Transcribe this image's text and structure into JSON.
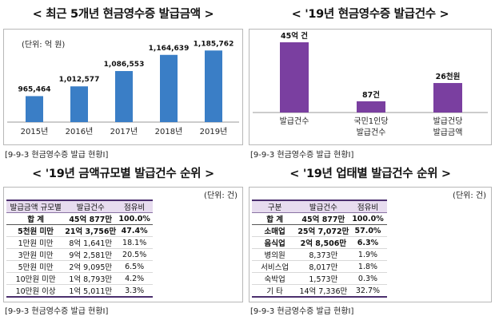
{
  "panels": {
    "tl": {
      "title": "< 최근 5개년 현금영수증 발급금액 >",
      "unit": "(단위: 억 원)",
      "source": "[9-9-3 현금영수증 발급 현황Ⅰ]"
    },
    "tr": {
      "title": "< '19년 현금영수증 발급건수 >",
      "source": "[9-9-3 현금영수증 발급 현황Ⅰ]"
    },
    "bl": {
      "title": "< '19년 금액규모별 발급건수 순위 >",
      "unit": "(단위: 건)",
      "source": "[9-9-3 현금영수증 발급 현황Ⅰ]",
      "headers": [
        "발급금액 규모별",
        "발급건수",
        "점유비"
      ],
      "rows": [
        {
          "label": "합 계",
          "count": "45억 877만",
          "share": "100.0%",
          "bold": true
        },
        {
          "label": "5천원 미만",
          "count": "21억 3,756만",
          "share": "47.4%",
          "bold": true
        },
        {
          "label": "1만원 미만",
          "count": "8억 1,641만",
          "share": "18.1%",
          "bold": false
        },
        {
          "label": "3만원 미만",
          "count": "9억 2,581만",
          "share": "20.5%",
          "bold": false
        },
        {
          "label": "5만원 미만",
          "count": "2억 9,095만",
          "share": "6.5%",
          "bold": false
        },
        {
          "label": "10만원 미만",
          "count": "1억 8,793만",
          "share": "4.2%",
          "bold": false
        },
        {
          "label": "10만원 이상",
          "count": "1억 5,011만",
          "share": "3.3%",
          "bold": false
        }
      ]
    },
    "br": {
      "title": "< '19년 업태별 발급건수 순위 >",
      "unit": "(단위: 건)",
      "source": "[9-9-3 현금영수증 발급 현황Ⅰ]",
      "headers": [
        "구분",
        "발급건수",
        "점유비"
      ],
      "rows": [
        {
          "label": "합 계",
          "count": "45억 877만",
          "share": "100.0%",
          "bold": true
        },
        {
          "label": "소매업",
          "count": "25억 7,072만",
          "share": "57.0%",
          "bold": true
        },
        {
          "label": "음식업",
          "count": "2억 8,506만",
          "share": "6.3%",
          "bold": true
        },
        {
          "label": "병의원",
          "count": "8,373만",
          "share": "1.9%",
          "bold": false
        },
        {
          "label": "서비스업",
          "count": "8,017만",
          "share": "1.8%",
          "bold": false
        },
        {
          "label": "숙박업",
          "count": "1,573만",
          "share": "0.3%",
          "bold": false
        },
        {
          "label": "기 타",
          "count": "14억 7,336만",
          "share": "32.7%",
          "bold": false
        }
      ]
    }
  },
  "colors": {
    "blue_bar": "#3a7ec6",
    "purple_bar": "#7a3fa0",
    "header_bg": "#e7dcef",
    "rule": "#4b2f6e"
  },
  "chart_data": [
    {
      "type": "bar",
      "title": "최근 5개년 현금영수증 발급금액",
      "ylabel": "(단위: 억 원)",
      "categories": [
        "2015년",
        "2016년",
        "2017년",
        "2018년",
        "2019년"
      ],
      "values": [
        965464,
        1012577,
        1086553,
        1164639,
        1185762
      ],
      "value_labels": [
        "965,464",
        "1,012,577",
        "1,086,553",
        "1,164,639",
        "1,185,762"
      ],
      "ylim": [
        840000,
        1210000
      ],
      "grid": false
    },
    {
      "type": "bar",
      "title": "'19년 현금영수증 발급건수",
      "categories": [
        "발급건수",
        "국민1인당\n발급건수",
        "발급건당\n발급금액"
      ],
      "value_labels": [
        "45억 건",
        "87건",
        "26천원"
      ],
      "relative_heights": [
        1.0,
        0.16,
        0.42
      ],
      "grid": false
    }
  ]
}
